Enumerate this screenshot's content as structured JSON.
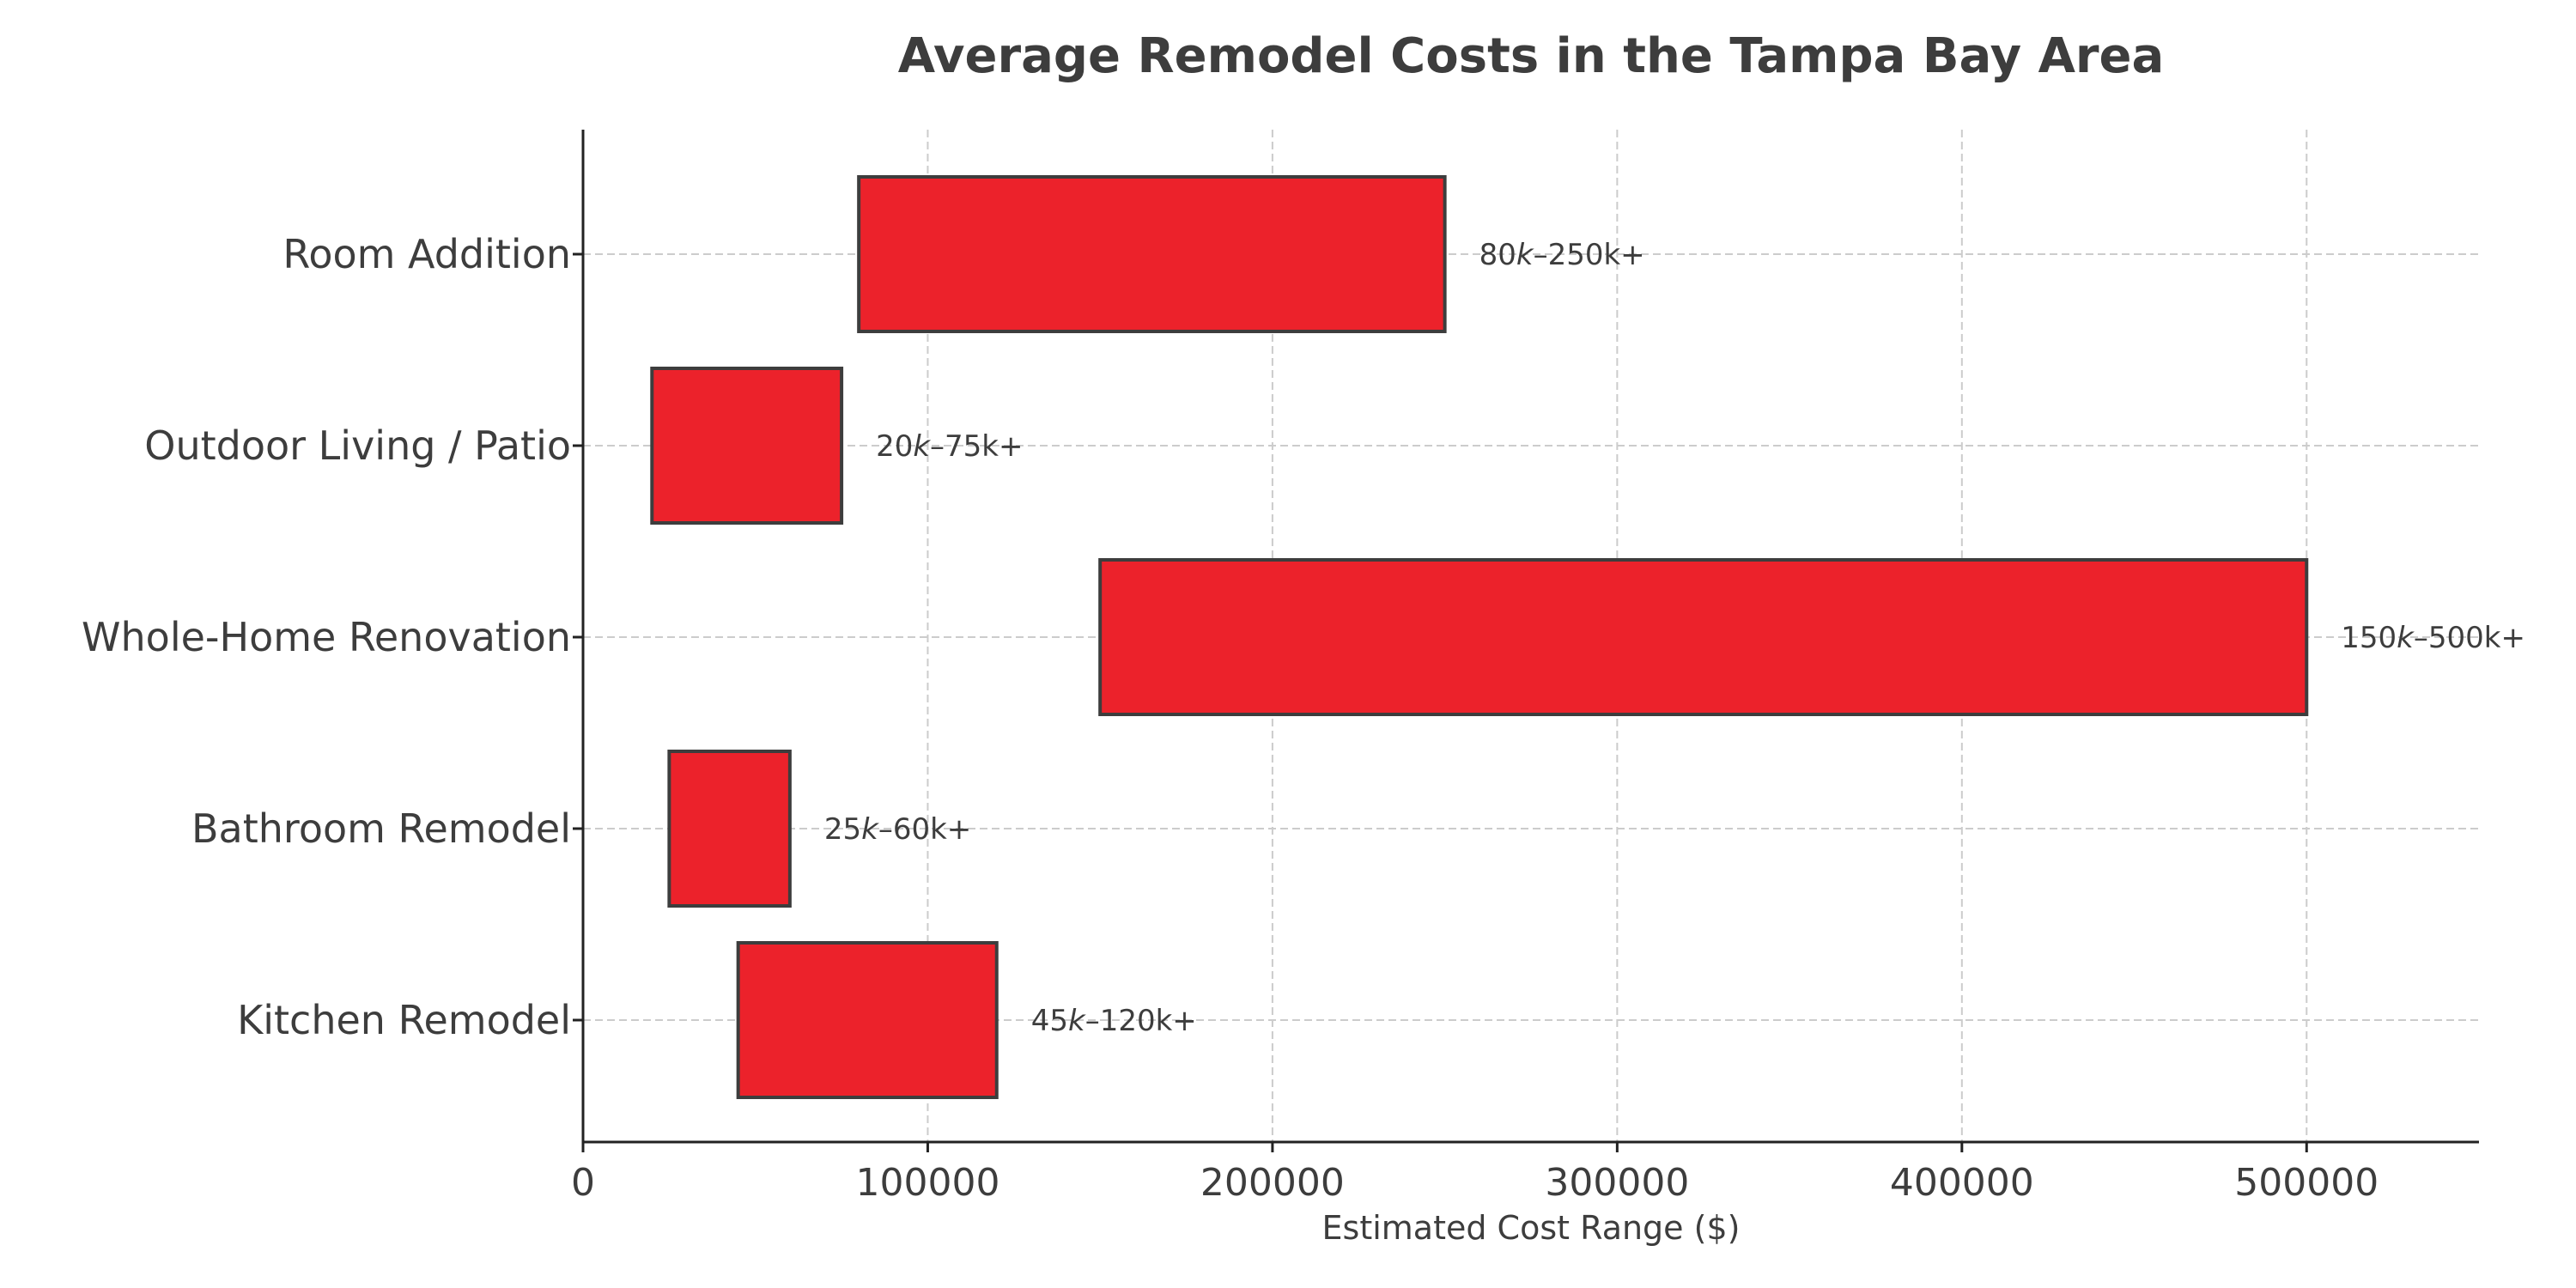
{
  "chart_data": {
    "type": "bar",
    "orientation": "horizontal",
    "subtype": "floating-range",
    "title": "Average Remodel Costs in the Tampa Bay Area",
    "xlabel": "Estimated Cost Range ($)",
    "ylabel": "",
    "xlim": [
      0,
      550000
    ],
    "xticks": [
      0,
      100000,
      200000,
      300000,
      400000,
      500000
    ],
    "xtick_labels": [
      "0",
      "100000",
      "200000",
      "300000",
      "400000",
      "500000"
    ],
    "grid": true,
    "bar_color": "#ec222b",
    "edge_color": "#3d3d3d",
    "categories": [
      "Kitchen Remodel",
      "Bathroom Remodel",
      "Whole-Home Renovation",
      "Outdoor Living / Patio",
      "Room Addition"
    ],
    "series": [
      {
        "low": [
          45000,
          25000,
          150000,
          20000,
          80000
        ],
        "high": [
          120000,
          60000,
          500000,
          75000,
          250000
        ],
        "labels": [
          {
            "a": "45",
            "b": "–120k+"
          },
          {
            "a": "25",
            "b": "–60k+"
          },
          {
            "a": "150",
            "b": "–500k+"
          },
          {
            "a": "20",
            "b": "–75k+"
          },
          {
            "a": "80",
            "b": "–250k+"
          }
        ]
      }
    ]
  }
}
